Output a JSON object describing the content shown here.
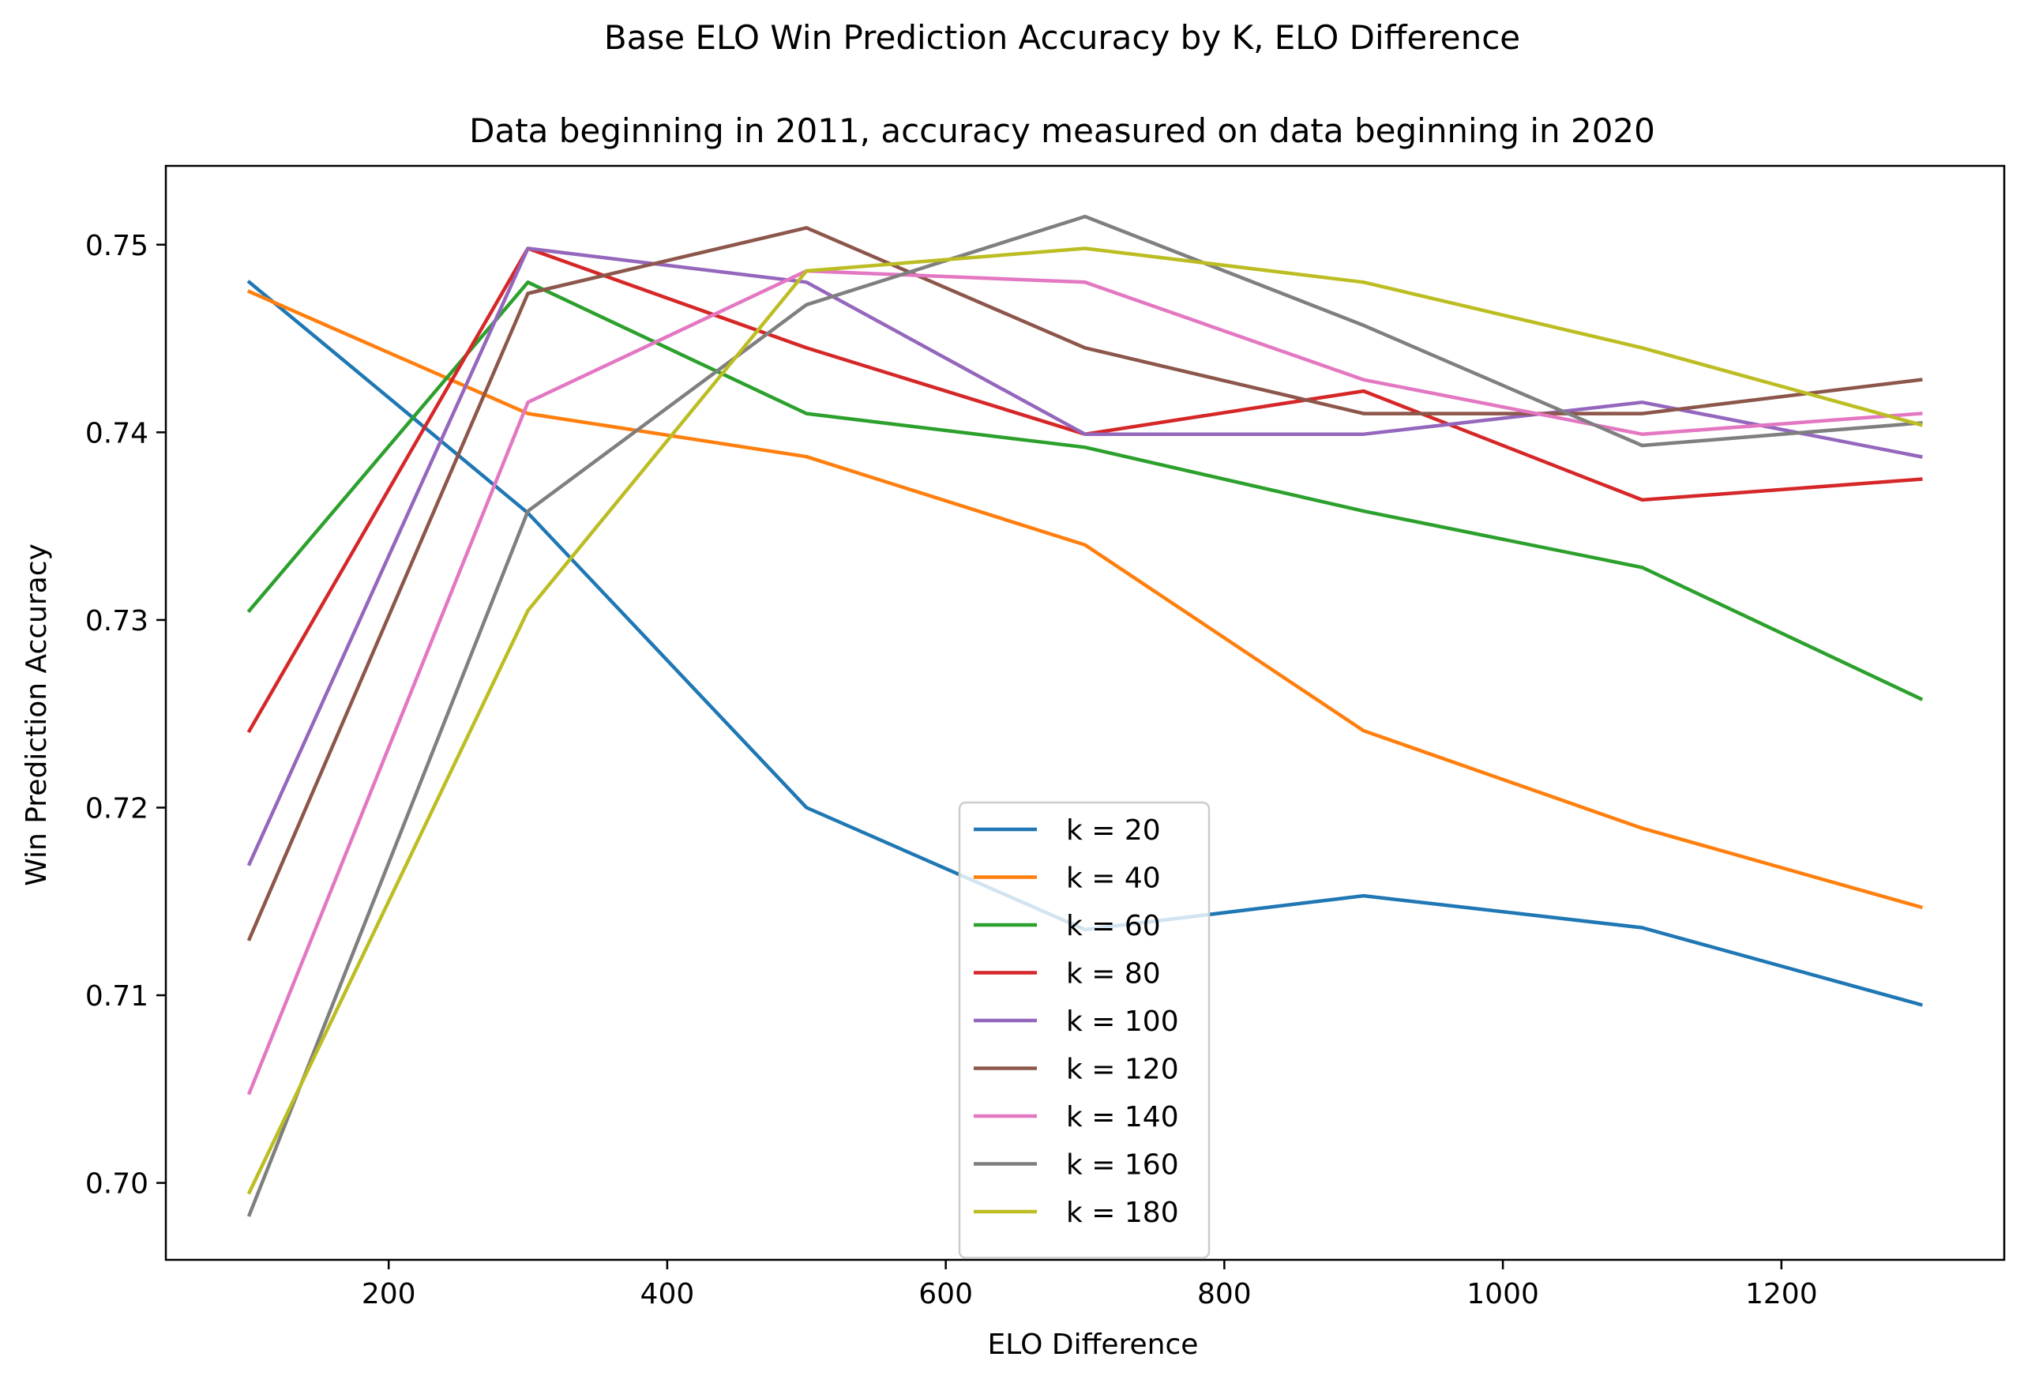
{
  "chart_data": {
    "type": "line",
    "title": "Base ELO Win Prediction Accuracy by K, ELO Difference",
    "subtitle": "Data beginning in 2011, accuracy measured on data beginning in 2020",
    "xlabel": "ELO Difference",
    "ylabel": "Win Prediction Accuracy",
    "xlim": [
      40,
      1360
    ],
    "ylim": [
      0.6959,
      0.7542
    ],
    "xticks": [
      200,
      400,
      600,
      800,
      1000,
      1200
    ],
    "yticks": [
      0.7,
      0.71,
      0.72,
      0.73,
      0.74,
      0.75
    ],
    "xtick_labels": [
      "200",
      "400",
      "600",
      "800",
      "1000",
      "1200"
    ],
    "ytick_labels": [
      "0.70",
      "0.71",
      "0.72",
      "0.73",
      "0.74",
      "0.75"
    ],
    "x": [
      100,
      300,
      500,
      700,
      900,
      1100,
      1300
    ],
    "grid": false,
    "legend_position": "lower-center",
    "series": [
      {
        "name": "k = 20",
        "color": "#1f77b4",
        "values": [
          0.748,
          0.7357,
          0.72,
          0.7135,
          0.7153,
          0.7136,
          0.7095
        ]
      },
      {
        "name": "k = 40",
        "color": "#ff7f0e",
        "values": [
          0.7475,
          0.741,
          0.7387,
          0.734,
          0.7241,
          0.7189,
          0.7147
        ]
      },
      {
        "name": "k = 60",
        "color": "#2ca02c",
        "values": [
          0.7305,
          0.748,
          0.741,
          0.7392,
          0.7358,
          0.7328,
          0.7258
        ]
      },
      {
        "name": "k = 80",
        "color": "#d62728",
        "values": [
          0.7241,
          0.7498,
          0.7445,
          0.7399,
          0.7422,
          0.7364,
          0.7375
        ]
      },
      {
        "name": "k = 100",
        "color": "#9467bd",
        "values": [
          0.717,
          0.7498,
          0.748,
          0.7399,
          0.7399,
          0.7416,
          0.7387
        ]
      },
      {
        "name": "k = 120",
        "color": "#8c564b",
        "values": [
          0.713,
          0.7474,
          0.7509,
          0.7445,
          0.741,
          0.741,
          0.7428
        ]
      },
      {
        "name": "k = 140",
        "color": "#e377c2",
        "values": [
          0.7048,
          0.7416,
          0.7486,
          0.748,
          0.7428,
          0.7399,
          0.741
        ]
      },
      {
        "name": "k = 160",
        "color": "#7f7f7f",
        "values": [
          0.6983,
          0.7358,
          0.7468,
          0.7515,
          0.7457,
          0.7393,
          0.7405
        ]
      },
      {
        "name": "k = 180",
        "color": "#bcbd22",
        "values": [
          0.6995,
          0.7305,
          0.7486,
          0.7498,
          0.748,
          0.7445,
          0.7404
        ]
      }
    ]
  }
}
